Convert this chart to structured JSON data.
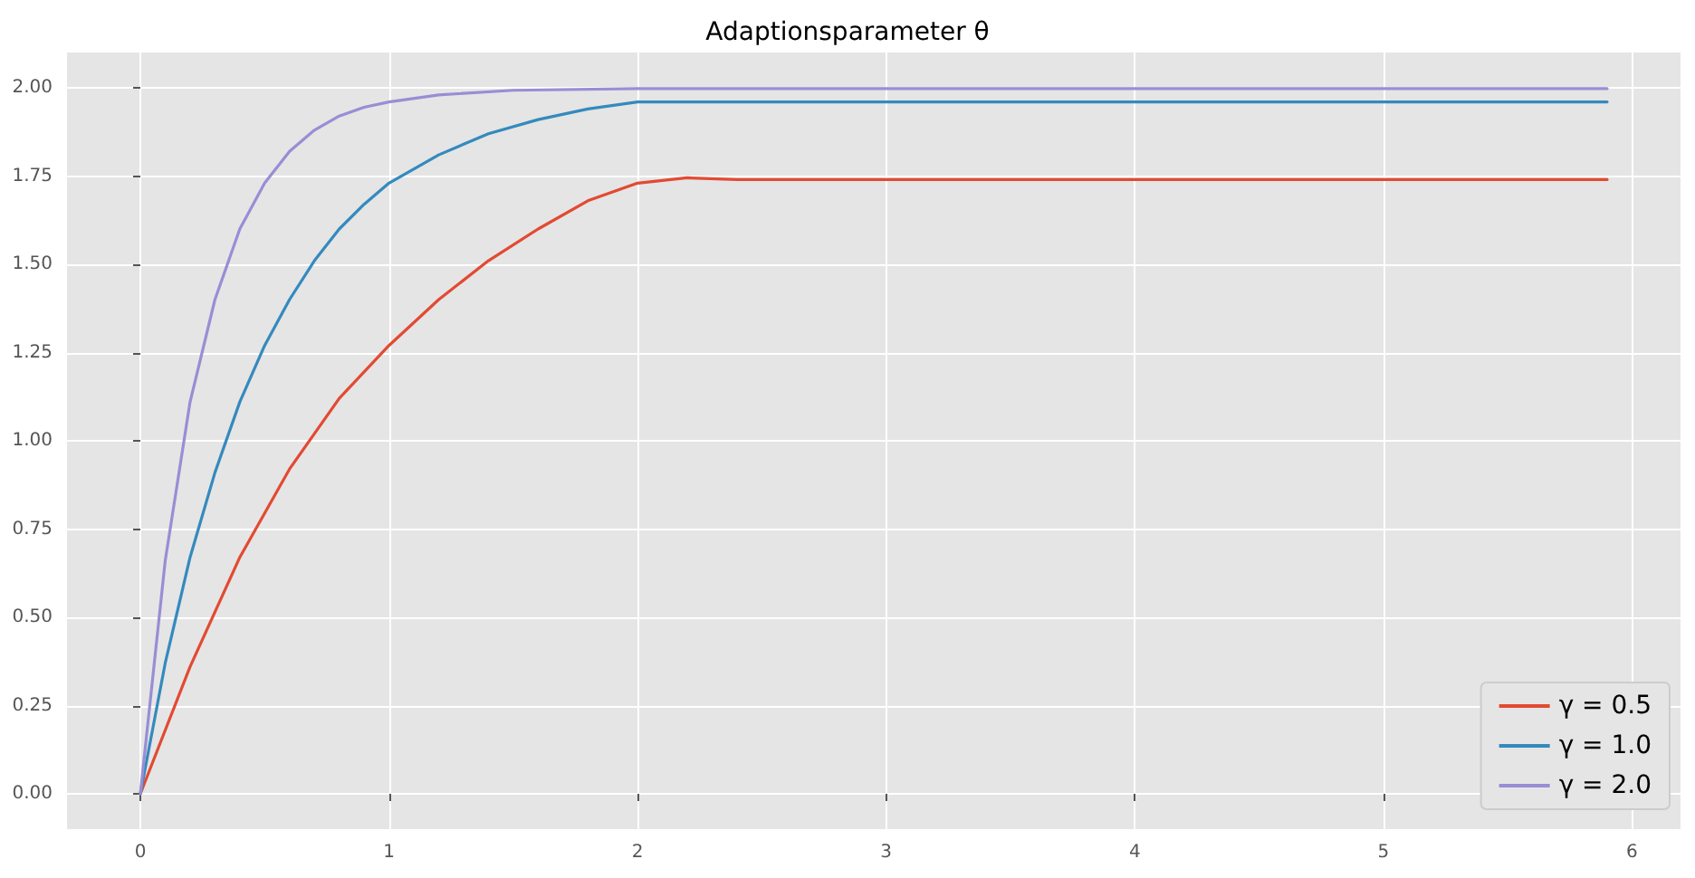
{
  "chart_data": {
    "type": "line",
    "title": "Adaptionsparameter θ",
    "xlim": [
      -0.295,
      6.195
    ],
    "xticks": [
      0,
      1,
      2,
      3,
      4,
      5,
      6
    ],
    "ylim": [
      -0.1,
      2.1
    ],
    "yticks": [
      {
        "value": 0,
        "label": "0.00"
      },
      {
        "value": 0.25,
        "label": "0.25"
      },
      {
        "value": 0.5,
        "label": "0.50"
      },
      {
        "value": 0.75,
        "label": "0.75"
      },
      {
        "value": 1,
        "label": "1.00"
      },
      {
        "value": 1.25,
        "label": "1.25"
      },
      {
        "value": 1.5,
        "label": "1.50"
      },
      {
        "value": 1.75,
        "label": "1.75"
      },
      {
        "value": 2,
        "label": "2.00"
      }
    ],
    "grid": true,
    "legend": "bottom right",
    "marker": "none",
    "line_style": "solid",
    "series": [
      {
        "name": "γ = 0.5",
        "color": "#e24a33",
        "x": [
          0,
          0.2,
          0.4,
          0.6,
          0.8,
          1.0,
          1.2,
          1.4,
          1.6,
          1.8,
          2.0,
          2.2,
          2.4,
          5.9
        ],
        "values": [
          0,
          0.36,
          0.67,
          0.92,
          1.12,
          1.27,
          1.4,
          1.51,
          1.6,
          1.68,
          1.73,
          1.745,
          1.74,
          1.74
        ]
      },
      {
        "name": "γ = 1.0",
        "color": "#348abd",
        "x": [
          0,
          0.1,
          0.2,
          0.3,
          0.4,
          0.5,
          0.6,
          0.7,
          0.8,
          0.9,
          1.0,
          1.2,
          1.4,
          1.6,
          1.8,
          2.0,
          2.2,
          5.9
        ],
        "values": [
          0,
          0.37,
          0.67,
          0.91,
          1.11,
          1.27,
          1.4,
          1.51,
          1.6,
          1.67,
          1.73,
          1.81,
          1.87,
          1.91,
          1.94,
          1.96,
          1.96,
          1.96
        ]
      },
      {
        "name": "γ = 2.0",
        "color": "#988ed5",
        "x": [
          0,
          0.1,
          0.2,
          0.3,
          0.4,
          0.5,
          0.6,
          0.7,
          0.8,
          0.9,
          1.0,
          1.2,
          1.5,
          2.0,
          5.9
        ],
        "values": [
          0,
          0.66,
          1.11,
          1.4,
          1.6,
          1.73,
          1.82,
          1.88,
          1.92,
          1.945,
          1.96,
          1.98,
          1.993,
          1.998,
          1.998
        ]
      }
    ]
  }
}
